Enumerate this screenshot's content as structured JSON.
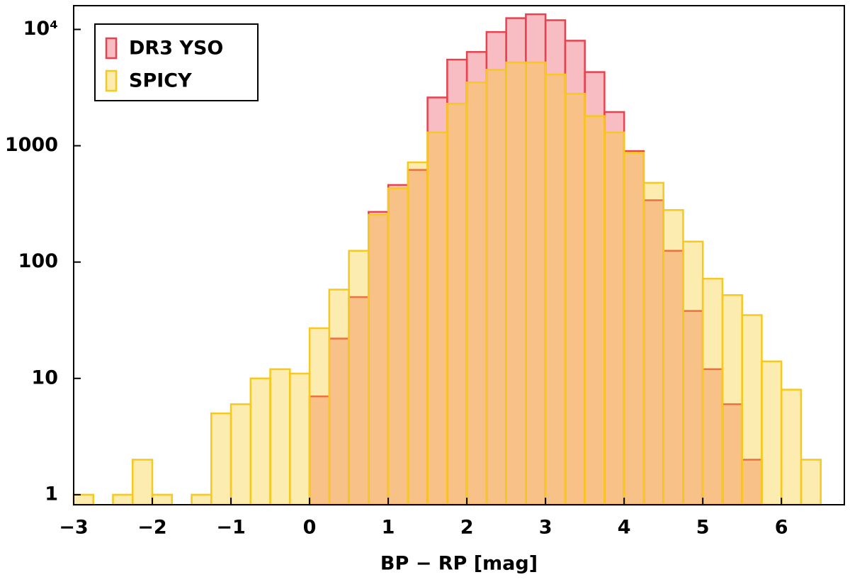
{
  "chart_data": {
    "type": "histogram",
    "xlabel": "BP − RP [mag]",
    "bins": [
      -3,
      -2.75,
      -2.5,
      -2.25,
      -2,
      -1.75,
      -1.5,
      -1.25,
      -1,
      -0.75,
      -0.5,
      -0.25,
      0,
      0.25,
      0.5,
      0.75,
      1,
      1.25,
      1.5,
      1.75,
      2,
      2.25,
      2.5,
      2.75,
      3,
      3.25,
      3.5,
      3.75,
      4,
      4.25,
      4.5,
      4.75,
      5,
      5.25,
      5.5,
      5.75,
      6,
      6.25,
      6.5
    ],
    "series": [
      {
        "name": "DR3 YSO",
        "color": "#e8424f",
        "values": [
          null,
          null,
          null,
          null,
          null,
          null,
          null,
          null,
          null,
          null,
          null,
          null,
          7,
          22,
          50,
          270,
          460,
          620,
          2600,
          5500,
          6400,
          9500,
          12500,
          13500,
          12000,
          8000,
          4300,
          1950,
          900,
          340,
          125,
          38,
          12,
          6,
          2,
          null,
          null,
          null
        ]
      },
      {
        "name": "SPICY",
        "color": "#f7c81e",
        "values": [
          1,
          null,
          1,
          2,
          1,
          null,
          1,
          5,
          6,
          10,
          12,
          11,
          27,
          58,
          125,
          255,
          430,
          720,
          1300,
          2300,
          3500,
          4500,
          5200,
          5200,
          4100,
          2800,
          1800,
          1300,
          870,
          480,
          280,
          150,
          72,
          52,
          35,
          14,
          8,
          2
        ]
      }
    ],
    "xlim": [
      -3,
      6.8
    ],
    "xticks": [
      {
        "value": -3,
        "label": "−3"
      },
      {
        "value": -2,
        "label": "−2"
      },
      {
        "value": -1,
        "label": "−1"
      },
      0,
      1,
      2,
      3,
      4,
      5,
      6
    ],
    "ylim": [
      0.82,
      16000
    ],
    "yscale": "log",
    "yticks": [
      1,
      10,
      100,
      1000,
      {
        "value": 10000,
        "label": "10⁴"
      }
    ],
    "legend": "upper left"
  }
}
